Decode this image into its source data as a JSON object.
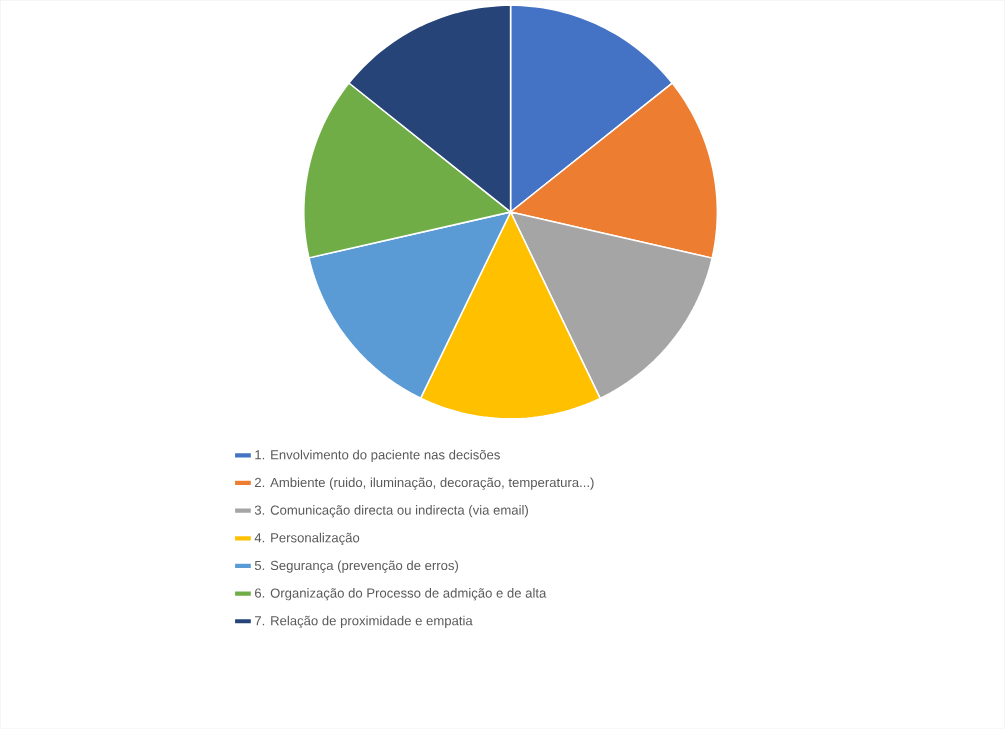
{
  "chart_data": {
    "type": "pie",
    "legend": "bottom",
    "categories": [
      "1. Envolvimento do paciente nas decisões",
      "2. Ambiente (ruido, iluminação, decoração, temperatura...)",
      "3. Comunicação directa ou indirecta (via email)",
      "4. Personalização",
      "5. Segurança (prevenção de erros)",
      "6. Organização do Processo de admição e de alta",
      "7. Relação de proximidade e empatia"
    ],
    "values": [
      14.29,
      14.29,
      14.29,
      14.29,
      14.28,
      14.28,
      14.28
    ],
    "colors": [
      "#4472c4",
      "#ed7d31",
      "#a5a5a5",
      "#ffc000",
      "#5b9bd5",
      "#70ad47",
      "#264478"
    ]
  }
}
